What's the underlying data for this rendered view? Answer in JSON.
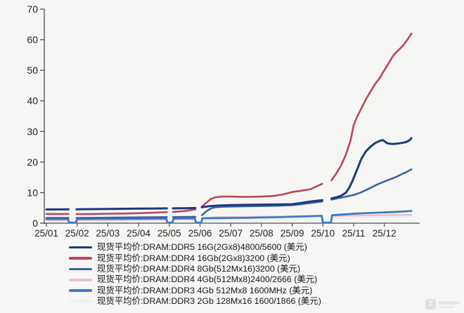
{
  "page": {
    "background": "#f6f7f4",
    "axis_color": "#4d4d4d",
    "tick_text_color": "#1f1f1f"
  },
  "chart_data": {
    "type": "line",
    "title": "",
    "xlabel": "",
    "ylabel": "",
    "x_tick_labels": [
      "25/01",
      "25/02",
      "25/03",
      "25/04",
      "25/05",
      "25/06",
      "25/07",
      "25/08",
      "25/09",
      "25/10",
      "25/11",
      "25/12"
    ],
    "y_axis": {
      "range": [
        0,
        70
      ],
      "ticks": [
        0,
        10,
        20,
        30,
        40,
        50,
        60,
        70
      ]
    },
    "grid": false,
    "legend_position": "bottom",
    "data_gaps_x_months": [
      [
        0.72,
        0.98
      ],
      [
        3.92,
        4.12
      ],
      [
        4.85,
        5.06
      ],
      [
        8.98,
        9.28
      ]
    ],
    "draw_order": [
      5,
      3,
      4,
      2,
      1,
      0
    ],
    "series": [
      {
        "id": "ddr5-16g",
        "name": "现货平均价:DRAM:DDR5 16G(2Gx8)4800/5600 (美元)",
        "color": "#1c3a7b",
        "width": 3,
        "points": [
          [
            0,
            4.5
          ],
          [
            0.4,
            4.5
          ],
          [
            0.72,
            4.55
          ],
          null,
          [
            0.98,
            4.55
          ],
          [
            1.5,
            4.6
          ],
          [
            2,
            4.65
          ],
          [
            2.5,
            4.7
          ],
          [
            3,
            4.75
          ],
          [
            3.5,
            4.8
          ],
          [
            3.92,
            4.85
          ],
          null,
          [
            4.12,
            4.85
          ],
          [
            4.5,
            4.9
          ],
          [
            4.85,
            4.95
          ],
          null,
          [
            5.06,
            5.2
          ],
          [
            5.3,
            5.55
          ],
          [
            5.6,
            5.75
          ],
          [
            6,
            5.9
          ],
          [
            6.5,
            6.0
          ],
          [
            7,
            6.05
          ],
          [
            7.5,
            6.1
          ],
          [
            8,
            6.2
          ],
          [
            8.3,
            6.6
          ],
          [
            8.6,
            7.1
          ],
          [
            8.98,
            7.5
          ],
          null,
          [
            9.28,
            8.1
          ],
          [
            9.45,
            8.5
          ],
          [
            9.6,
            9.0
          ],
          [
            9.75,
            10.0
          ],
          [
            9.85,
            11.5
          ],
          [
            9.95,
            13.5
          ],
          [
            10.05,
            16.0
          ],
          [
            10.15,
            18.5
          ],
          [
            10.25,
            21.0
          ],
          [
            10.4,
            23.5
          ],
          [
            10.55,
            25.0
          ],
          [
            10.7,
            26.2
          ],
          [
            10.85,
            26.9
          ],
          [
            10.95,
            27.2
          ],
          [
            11.1,
            26.1
          ],
          [
            11.25,
            25.9
          ],
          [
            11.4,
            26.0
          ],
          [
            11.55,
            26.2
          ],
          [
            11.7,
            26.5
          ],
          [
            11.8,
            27.0
          ],
          [
            11.88,
            27.8
          ]
        ]
      },
      {
        "id": "ddr4-16gb",
        "name": "现货平均价:DRAM:DDR4 16Gb(2Gx8)3200 (美元)",
        "color": "#bf4456",
        "width": 2.6,
        "points": [
          [
            0,
            3.0
          ],
          [
            0.4,
            3.0
          ],
          [
            0.72,
            3.0
          ],
          null,
          [
            0.98,
            2.95
          ],
          [
            1.5,
            3.0
          ],
          [
            2,
            3.1
          ],
          [
            2.5,
            3.15
          ],
          [
            3,
            3.25
          ],
          [
            3.5,
            3.45
          ],
          [
            3.92,
            3.6
          ],
          null,
          [
            4.12,
            3.7
          ],
          [
            4.5,
            3.95
          ],
          [
            4.85,
            4.5
          ],
          null,
          [
            5.06,
            5.4
          ],
          [
            5.2,
            6.6
          ],
          [
            5.35,
            7.9
          ],
          [
            5.5,
            8.5
          ],
          [
            5.7,
            8.7
          ],
          [
            6,
            8.7
          ],
          [
            6.3,
            8.6
          ],
          [
            6.6,
            8.6
          ],
          [
            7,
            8.7
          ],
          [
            7.4,
            8.9
          ],
          [
            7.7,
            9.4
          ],
          [
            8,
            10.2
          ],
          [
            8.3,
            10.6
          ],
          [
            8.6,
            11.1
          ],
          [
            8.98,
            12.9
          ],
          null,
          [
            9.28,
            14.0
          ],
          [
            9.45,
            16.5
          ],
          [
            9.6,
            19.0
          ],
          [
            9.75,
            22.5
          ],
          [
            9.9,
            27.0
          ],
          [
            10.0,
            32.0
          ],
          [
            10.1,
            34.5
          ],
          [
            10.25,
            37.5
          ],
          [
            10.4,
            40.5
          ],
          [
            10.55,
            43.0
          ],
          [
            10.7,
            45.5
          ],
          [
            10.85,
            47.5
          ],
          [
            11.0,
            50.0
          ],
          [
            11.15,
            52.5
          ],
          [
            11.3,
            55.0
          ],
          [
            11.45,
            56.5
          ],
          [
            11.6,
            58.0
          ],
          [
            11.75,
            60.0
          ],
          [
            11.88,
            62.0
          ]
        ]
      },
      {
        "id": "ddr4-8gb",
        "name": "现货平均价:DRAM:DDR4 8Gb(512Mx16)3200 (美元)",
        "color": "#3e62a6",
        "width": 2.6,
        "points": [
          [
            0,
            1.7
          ],
          [
            0.4,
            1.7
          ],
          [
            0.72,
            1.7
          ],
          null,
          [
            0.98,
            1.7
          ],
          [
            1.5,
            1.75
          ],
          [
            2,
            1.8
          ],
          [
            2.5,
            1.85
          ],
          [
            3,
            1.9
          ],
          [
            3.5,
            1.95
          ],
          [
            3.92,
            2.0
          ],
          null,
          [
            4.12,
            2.0
          ],
          [
            4.5,
            2.05
          ],
          [
            4.85,
            2.1
          ],
          null,
          [
            5.06,
            2.6
          ],
          [
            5.2,
            3.8
          ],
          [
            5.35,
            4.8
          ],
          [
            5.5,
            5.2
          ],
          [
            5.7,
            5.35
          ],
          [
            6,
            5.45
          ],
          [
            6.5,
            5.5
          ],
          [
            7,
            5.6
          ],
          [
            7.5,
            5.7
          ],
          [
            8,
            5.9
          ],
          [
            8.3,
            6.2
          ],
          [
            8.6,
            6.6
          ],
          [
            8.98,
            7.1
          ],
          null,
          [
            9.28,
            7.7
          ],
          [
            9.5,
            8.2
          ],
          [
            9.75,
            8.7
          ],
          [
            10,
            9.2
          ],
          [
            10.2,
            9.9
          ],
          [
            10.4,
            10.8
          ],
          [
            10.6,
            11.8
          ],
          [
            10.8,
            12.8
          ],
          [
            11,
            13.6
          ],
          [
            11.2,
            14.4
          ],
          [
            11.4,
            15.2
          ],
          [
            11.6,
            16.2
          ],
          [
            11.75,
            16.9
          ],
          [
            11.88,
            17.6
          ]
        ]
      },
      {
        "id": "ddr4-4gb",
        "name": "现货平均价:DRAM:DDR4 4Gb(512Mx8)2400/2666 (美元)",
        "color": "#e8c2cc",
        "width": 2.6,
        "points": [
          [
            0,
            1.0
          ],
          [
            0.72,
            1.0
          ],
          null,
          [
            0.98,
            1.0
          ],
          [
            2,
            1.1
          ],
          [
            3,
            1.15
          ],
          [
            3.92,
            1.25
          ],
          null,
          [
            4.12,
            1.3
          ],
          [
            4.85,
            1.35
          ],
          null,
          [
            5.06,
            1.6
          ],
          [
            5.5,
            1.9
          ],
          [
            6,
            2.0
          ],
          [
            7,
            2.1
          ],
          [
            8,
            2.2
          ],
          [
            8.98,
            2.35
          ],
          null,
          [
            9.28,
            2.4
          ],
          [
            10,
            2.5
          ],
          [
            10.5,
            2.55
          ],
          [
            11,
            2.6
          ],
          [
            11.5,
            2.65
          ],
          [
            11.88,
            2.75
          ]
        ]
      },
      {
        "id": "ddr3-4gb",
        "name": "现货平均价:DRAM:DDR3 4Gb 512Mx8 1600MHz (美元)",
        "color": "#3f79c6",
        "width": 2.8,
        "points": [
          [
            0,
            1.35
          ],
          [
            0.4,
            1.35
          ],
          [
            0.7,
            1.35
          ],
          [
            0.74,
            0.15
          ],
          [
            0.96,
            0.15
          ],
          [
            1.0,
            1.35
          ],
          [
            1.5,
            1.4
          ],
          [
            2,
            1.4
          ],
          [
            2.5,
            1.45
          ],
          [
            3,
            1.45
          ],
          [
            3.5,
            1.5
          ],
          [
            3.9,
            1.5
          ],
          [
            3.94,
            0.15
          ],
          [
            4.1,
            0.15
          ],
          [
            4.14,
            1.5
          ],
          [
            4.5,
            1.55
          ],
          [
            4.83,
            1.55
          ],
          [
            4.87,
            0.15
          ],
          [
            5.04,
            0.15
          ],
          [
            5.08,
            1.6
          ],
          [
            5.5,
            1.65
          ],
          [
            6,
            1.7
          ],
          [
            6.5,
            1.75
          ],
          [
            7,
            1.85
          ],
          [
            7.5,
            1.95
          ],
          [
            8,
            2.1
          ],
          [
            8.5,
            2.25
          ],
          [
            8.96,
            2.4
          ],
          [
            9.0,
            0.15
          ],
          [
            9.26,
            0.15
          ],
          [
            9.3,
            2.6
          ],
          [
            9.6,
            2.8
          ],
          [
            10,
            3.1
          ],
          [
            10.4,
            3.3
          ],
          [
            10.8,
            3.45
          ],
          [
            11.2,
            3.6
          ],
          [
            11.6,
            3.8
          ],
          [
            11.88,
            4.0
          ]
        ]
      },
      {
        "id": "ddr3-2gb",
        "name": "现货平均价:DRAM:DDR3 2Gb 128Mx16 1600/1866 (美元)",
        "color": "#edf0f2",
        "width": 2.6,
        "points": [
          [
            0,
            0.8
          ],
          [
            0.72,
            0.8
          ],
          null,
          [
            0.98,
            0.8
          ],
          [
            2,
            0.85
          ],
          [
            3,
            0.9
          ],
          [
            3.92,
            0.9
          ],
          null,
          [
            4.12,
            0.9
          ],
          [
            4.85,
            0.95
          ],
          null,
          [
            5.06,
            1.0
          ],
          [
            6,
            1.05
          ],
          [
            7,
            1.1
          ],
          [
            8,
            1.2
          ],
          [
            8.98,
            1.35
          ],
          null,
          [
            9.28,
            1.5
          ],
          [
            10,
            1.7
          ],
          [
            10.8,
            1.9
          ],
          [
            11.4,
            2.1
          ],
          [
            11.88,
            2.2
          ]
        ]
      }
    ]
  },
  "watermark": {
    "icon": "rounded-square-T-logo-icon",
    "glyph": "T"
  }
}
